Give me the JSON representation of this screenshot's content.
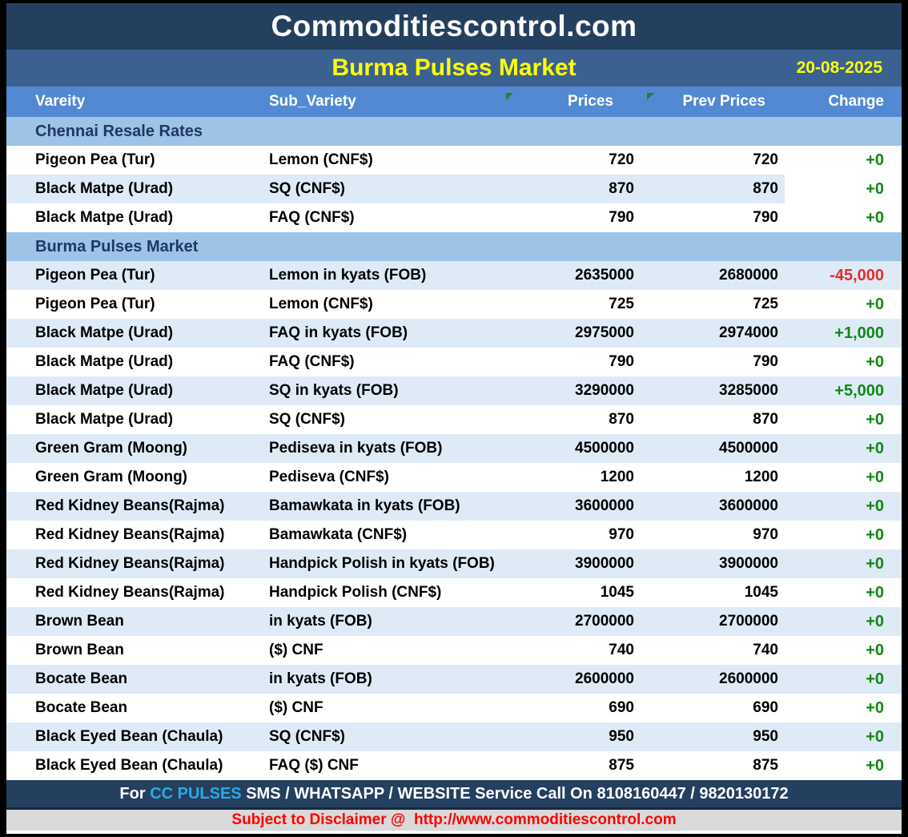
{
  "header": {
    "site_title": "Commoditiescontrol.com",
    "report_title": "Burma Pulses Market",
    "date": "20-08-2025"
  },
  "colors": {
    "up": "#128712",
    "down": "#E82C2C",
    "header_navy": "#253F5F",
    "subtitle_blue": "#3A6190",
    "column_header_blue": "#5389D2",
    "section_band_blue": "#9DC3E6",
    "shaded_row_blue": "#DEEBF7",
    "title_yellow": "#FFFF00",
    "brand_cyan": "#29ABE2",
    "disclaimer_red": "#FF0000"
  },
  "table": {
    "columns": {
      "variety": "Vareity",
      "sub_variety": "Sub_Variety",
      "prices": "Prices",
      "prev_prices": "Prev Prices",
      "change": "Change"
    },
    "sections": [
      {
        "title": "Chennai Resale Rates",
        "rows": [
          {
            "variety": "Pigeon Pea (Tur)",
            "sub_variety": "Lemon (CNF$)",
            "price": "720",
            "prev_price": "720",
            "change": "+0",
            "trend": "up"
          },
          {
            "variety": "Black Matpe (Urad)",
            "sub_variety": "SQ (CNF$)",
            "price": "870",
            "prev_price": "870",
            "change": "+0",
            "trend": "up",
            "change_cell_white": true
          },
          {
            "variety": "Black Matpe (Urad)",
            "sub_variety": "FAQ (CNF$)",
            "price": "790",
            "prev_price": "790",
            "change": "+0",
            "trend": "up"
          }
        ]
      },
      {
        "title": "Burma Pulses Market",
        "rows": [
          {
            "variety": "Pigeon Pea (Tur)",
            "sub_variety": "Lemon in kyats (FOB)",
            "price": "2635000",
            "prev_price": "2680000",
            "change": "-45,000",
            "trend": "down"
          },
          {
            "variety": "Pigeon Pea (Tur)",
            "sub_variety": "Lemon (CNF$)",
            "price": "725",
            "prev_price": "725",
            "change": "+0",
            "trend": "up"
          },
          {
            "variety": "Black Matpe (Urad)",
            "sub_variety": "FAQ in kyats (FOB)",
            "price": "2975000",
            "prev_price": "2974000",
            "change": "+1,000",
            "trend": "up"
          },
          {
            "variety": "Black Matpe (Urad)",
            "sub_variety": "FAQ (CNF$)",
            "price": "790",
            "prev_price": "790",
            "change": "+0",
            "trend": "up"
          },
          {
            "variety": "Black Matpe (Urad)",
            "sub_variety": "SQ in kyats (FOB)",
            "price": "3290000",
            "prev_price": "3285000",
            "change": "+5,000",
            "trend": "up"
          },
          {
            "variety": "Black Matpe (Urad)",
            "sub_variety": "SQ (CNF$)",
            "price": "870",
            "prev_price": "870",
            "change": "+0",
            "trend": "up"
          },
          {
            "variety": "Green Gram (Moong)",
            "sub_variety": "Pediseva in kyats (FOB)",
            "price": "4500000",
            "prev_price": "4500000",
            "change": "+0",
            "trend": "up"
          },
          {
            "variety": "Green Gram (Moong)",
            "sub_variety": "Pediseva (CNF$)",
            "price": "1200",
            "prev_price": "1200",
            "change": "+0",
            "trend": "up"
          },
          {
            "variety": "Red Kidney Beans(Rajma)",
            "sub_variety": "Bamawkata in kyats (FOB)",
            "price": "3600000",
            "prev_price": "3600000",
            "change": "+0",
            "trend": "up"
          },
          {
            "variety": "Red Kidney Beans(Rajma)",
            "sub_variety": "Bamawkata (CNF$)",
            "price": "970",
            "prev_price": "970",
            "change": "+0",
            "trend": "up"
          },
          {
            "variety": "Red Kidney Beans(Rajma)",
            "sub_variety": "Handpick Polish in kyats (FOB)",
            "price": "3900000",
            "prev_price": "3900000",
            "change": "+0",
            "trend": "up"
          },
          {
            "variety": "Red Kidney Beans(Rajma)",
            "sub_variety": "Handpick Polish (CNF$)",
            "price": "1045",
            "prev_price": "1045",
            "change": "+0",
            "trend": "up"
          },
          {
            "variety": "Brown Bean",
            "sub_variety": "in kyats (FOB)",
            "price": "2700000",
            "prev_price": "2700000",
            "change": "+0",
            "trend": "up"
          },
          {
            "variety": "Brown Bean",
            "sub_variety": "($) CNF",
            "price": "740",
            "prev_price": "740",
            "change": "+0",
            "trend": "up"
          },
          {
            "variety": "Bocate Bean",
            "sub_variety": "in kyats (FOB)",
            "price": "2600000",
            "prev_price": "2600000",
            "change": "+0",
            "trend": "up"
          },
          {
            "variety": "Bocate Bean",
            "sub_variety": "($) CNF",
            "price": "690",
            "prev_price": "690",
            "change": "+0",
            "trend": "up"
          },
          {
            "variety": "Black Eyed Bean (Chaula)",
            "sub_variety": "SQ (CNF$)",
            "price": "950",
            "prev_price": "950",
            "change": "+0",
            "trend": "up"
          },
          {
            "variety": "Black Eyed Bean (Chaula)",
            "sub_variety": "FAQ ($) CNF",
            "price": "875",
            "prev_price": "875",
            "change": "+0",
            "trend": "up"
          }
        ]
      }
    ]
  },
  "footer": {
    "prefix": "For ",
    "brand": "CC PULSES",
    "service_text": " SMS / WHATSAPP / WEBSITE Service Call On 8108160447 / 9820130172"
  },
  "disclaimer": {
    "prefix": "Subject to Disclaimer @  ",
    "url": "http://www.commoditiescontrol.com"
  }
}
